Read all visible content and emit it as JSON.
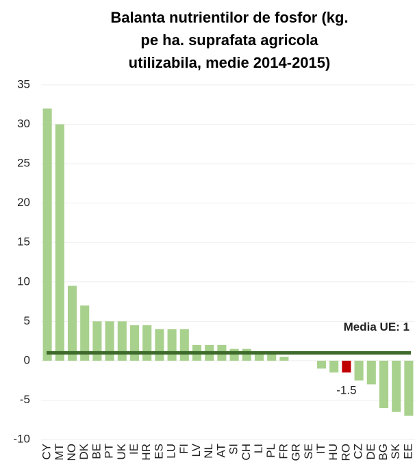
{
  "chart_data": {
    "type": "bar",
    "title": [
      "Balanta nutrientilor de fosfor (kg.",
      "pe ha. suprafata agricola",
      "utilizabila, medie 2014-2015)"
    ],
    "categories": [
      "CY",
      "MT",
      "NO",
      "DK",
      "BE",
      "PT",
      "UK",
      "IE",
      "HR",
      "ES",
      "LU",
      "FI",
      "LV",
      "NL",
      "AT",
      "SI",
      "CH",
      "LI",
      "PL",
      "FR",
      "GR",
      "SE",
      "IT",
      "HU",
      "RO",
      "CZ",
      "DE",
      "BG",
      "SK",
      "EE"
    ],
    "values": [
      32,
      30,
      9.5,
      7,
      5,
      5,
      5,
      4.5,
      4.5,
      4,
      4,
      4,
      2,
      2,
      2,
      1.5,
      1.5,
      1,
      1,
      0.5,
      0,
      0,
      -1,
      -1.5,
      -1.5,
      -2.5,
      -3,
      -6,
      -6.5,
      -7
    ],
    "colors": [
      "#a9d18e",
      "#a9d18e",
      "#a9d18e",
      "#a9d18e",
      "#a9d18e",
      "#a9d18e",
      "#a9d18e",
      "#a9d18e",
      "#a9d18e",
      "#a9d18e",
      "#a9d18e",
      "#a9d18e",
      "#a9d18e",
      "#a9d18e",
      "#a9d18e",
      "#a9d18e",
      "#a9d18e",
      "#a9d18e",
      "#a9d18e",
      "#a9d18e",
      "#a9d18e",
      "#a9d18e",
      "#a9d18e",
      "#a9d18e",
      "#c00000",
      "#a9d18e",
      "#a9d18e",
      "#a9d18e",
      "#a9d18e",
      "#a9d18e"
    ],
    "value_labels": [
      null,
      null,
      null,
      null,
      null,
      null,
      null,
      null,
      null,
      null,
      null,
      null,
      null,
      null,
      null,
      null,
      null,
      null,
      null,
      null,
      null,
      null,
      null,
      null,
      "-1.5",
      null,
      null,
      null,
      null,
      null
    ],
    "value_label_color": "#c00000",
    "reference_line": {
      "value": 1,
      "label": "Media UE: 1",
      "color": "#3e6b2b"
    },
    "ylim": [
      -10,
      35
    ],
    "yticks": [
      -10,
      -5,
      0,
      5,
      10,
      15,
      20,
      25,
      30,
      35
    ],
    "grid": true
  }
}
